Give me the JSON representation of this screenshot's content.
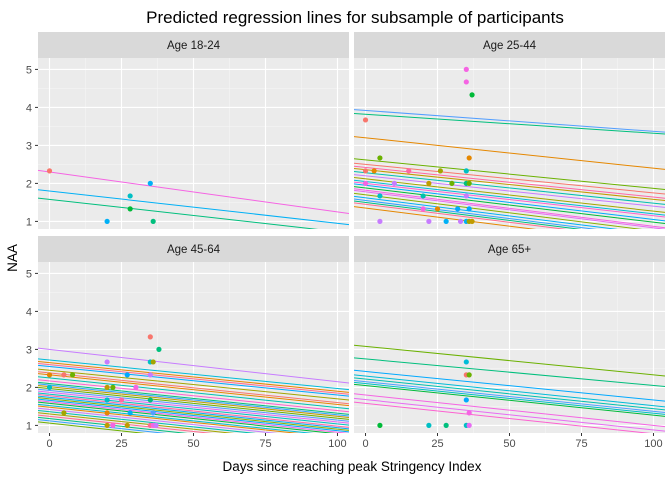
{
  "chart_data": {
    "type": "scatter",
    "title": "Predicted regression lines for subsample of participants",
    "xlabel": "Days since reaching peak Stringency Index",
    "ylabel": "NAA",
    "xlim": [
      -4,
      104
    ],
    "ylim": [
      0.8,
      5.3
    ],
    "x_ticks": [
      0,
      25,
      50,
      75,
      100
    ],
    "x_tick_labels": [
      "0",
      "25",
      "50",
      "75",
      "100"
    ],
    "y_ticks": [
      1,
      2,
      3,
      4,
      5
    ],
    "y_tick_labels": [
      "1",
      "2",
      "3",
      "4",
      "5"
    ],
    "grid": true,
    "legend": "none",
    "facets": [
      {
        "label": "Age 18-24",
        "lines": [
          {
            "intercept": 2.3,
            "slope": -0.0105,
            "color": "#f564e3"
          },
          {
            "intercept": 1.8,
            "slope": -0.0085,
            "color": "#00b0f6"
          },
          {
            "intercept": 1.58,
            "slope": -0.0085,
            "color": "#00bf7d"
          }
        ],
        "points": [
          {
            "x": 0,
            "y": 2.33,
            "color": "#f8766d"
          },
          {
            "x": 20,
            "y": 1.0,
            "color": "#00b0f6"
          },
          {
            "x": 28,
            "y": 1.67,
            "color": "#00bfc4"
          },
          {
            "x": 28,
            "y": 1.33,
            "color": "#00ba38"
          },
          {
            "x": 35,
            "y": 2.0,
            "color": "#00b0f6"
          },
          {
            "x": 36,
            "y": 1.0,
            "color": "#00bf7d"
          }
        ]
      },
      {
        "label": "Age 25-44",
        "lines": [
          {
            "intercept": 3.92,
            "slope": -0.0055,
            "color": "#529eff"
          },
          {
            "intercept": 3.82,
            "slope": -0.005,
            "color": "#00bf7d"
          },
          {
            "intercept": 3.2,
            "slope": -0.008,
            "color": "#e58700"
          },
          {
            "intercept": 2.62,
            "slope": -0.0075,
            "color": "#6bb100"
          },
          {
            "intercept": 2.5,
            "slope": -0.0075,
            "color": "#f8766d"
          },
          {
            "intercept": 2.42,
            "slope": -0.0078,
            "color": "#ff67a4"
          },
          {
            "intercept": 2.36,
            "slope": -0.0078,
            "color": "#c09b00"
          },
          {
            "intercept": 2.28,
            "slope": -0.008,
            "color": "#00c0af"
          },
          {
            "intercept": 2.2,
            "slope": -0.008,
            "color": "#c77cff"
          },
          {
            "intercept": 2.12,
            "slope": -0.0085,
            "color": "#a3a500"
          },
          {
            "intercept": 2.05,
            "slope": -0.0085,
            "color": "#00bcd8"
          },
          {
            "intercept": 2.0,
            "slope": -0.0085,
            "color": "#fd61d1"
          },
          {
            "intercept": 1.95,
            "slope": -0.009,
            "color": "#00a9ff"
          },
          {
            "intercept": 1.88,
            "slope": -0.009,
            "color": "#00ba38"
          },
          {
            "intercept": 1.82,
            "slope": -0.0095,
            "color": "#f564e3"
          },
          {
            "intercept": 1.78,
            "slope": -0.0095,
            "color": "#e76bf3"
          },
          {
            "intercept": 1.7,
            "slope": -0.0095,
            "color": "#8ab000"
          },
          {
            "intercept": 1.62,
            "slope": -0.0095,
            "color": "#00b0f6"
          },
          {
            "intercept": 1.55,
            "slope": -0.0095,
            "color": "#35a2ff"
          },
          {
            "intercept": 1.5,
            "slope": -0.0095,
            "color": "#00bf7d"
          },
          {
            "intercept": 1.45,
            "slope": -0.0095,
            "color": "#ff6c91"
          },
          {
            "intercept": 1.35,
            "slope": -0.0095,
            "color": "#e58700"
          }
        ],
        "points": [
          {
            "x": 0,
            "y": 3.67,
            "color": "#f8766d"
          },
          {
            "x": 0,
            "y": 2.33,
            "color": "#f8766d"
          },
          {
            "x": 0,
            "y": 2.0,
            "color": "#f564e3"
          },
          {
            "x": 3,
            "y": 2.33,
            "color": "#e58700"
          },
          {
            "x": 5,
            "y": 2.67,
            "color": "#6bb100"
          },
          {
            "x": 5,
            "y": 1.67,
            "color": "#00bfc4"
          },
          {
            "x": 5,
            "y": 1.0,
            "color": "#c77cff"
          },
          {
            "x": 10,
            "y": 2.0,
            "color": "#c77cff"
          },
          {
            "x": 15,
            "y": 2.33,
            "color": "#ff67a4"
          },
          {
            "x": 20,
            "y": 1.67,
            "color": "#00c0af"
          },
          {
            "x": 20,
            "y": 1.33,
            "color": "#f564e3"
          },
          {
            "x": 22,
            "y": 1.0,
            "color": "#c77cff"
          },
          {
            "x": 22,
            "y": 2.0,
            "color": "#c09b00"
          },
          {
            "x": 25,
            "y": 1.33,
            "color": "#e58700"
          },
          {
            "x": 26,
            "y": 2.33,
            "color": "#a3a500"
          },
          {
            "x": 28,
            "y": 1.0,
            "color": "#00b0f6"
          },
          {
            "x": 30,
            "y": 2.0,
            "color": "#6bb100"
          },
          {
            "x": 32,
            "y": 1.33,
            "color": "#00a9ff"
          },
          {
            "x": 33,
            "y": 1.0,
            "color": "#c77cff"
          },
          {
            "x": 35,
            "y": 5.0,
            "color": "#f564e3"
          },
          {
            "x": 35,
            "y": 4.67,
            "color": "#f564e3"
          },
          {
            "x": 35,
            "y": 2.33,
            "color": "#00bfc4"
          },
          {
            "x": 35,
            "y": 2.0,
            "color": "#00bf7d"
          },
          {
            "x": 35,
            "y": 1.67,
            "color": "#c77cff"
          },
          {
            "x": 35,
            "y": 1.0,
            "color": "#00b0f6"
          },
          {
            "x": 36,
            "y": 2.67,
            "color": "#e58700"
          },
          {
            "x": 36,
            "y": 2.0,
            "color": "#6bb100"
          },
          {
            "x": 36,
            "y": 1.33,
            "color": "#00a9ff"
          },
          {
            "x": 36,
            "y": 1.0,
            "color": "#a3a500"
          },
          {
            "x": 37,
            "y": 4.33,
            "color": "#00ba38"
          },
          {
            "x": 37,
            "y": 1.0,
            "color": "#c09b00"
          }
        ]
      },
      {
        "label": "Age 45-64",
        "lines": [
          {
            "intercept": 3.0,
            "slope": -0.0085,
            "color": "#c77cff"
          },
          {
            "intercept": 2.72,
            "slope": -0.0075,
            "color": "#00bcd8"
          },
          {
            "intercept": 2.65,
            "slope": -0.0075,
            "color": "#e58700"
          },
          {
            "intercept": 2.6,
            "slope": -0.0075,
            "color": "#ff6c91"
          },
          {
            "intercept": 2.55,
            "slope": -0.0075,
            "color": "#00a9ff"
          },
          {
            "intercept": 2.45,
            "slope": -0.0075,
            "color": "#a3a500"
          },
          {
            "intercept": 2.38,
            "slope": -0.0078,
            "color": "#f8766d"
          },
          {
            "intercept": 2.33,
            "slope": -0.0078,
            "color": "#e58700"
          },
          {
            "intercept": 2.25,
            "slope": -0.0078,
            "color": "#00c0af"
          },
          {
            "intercept": 2.17,
            "slope": -0.0078,
            "color": "#fd61d1"
          },
          {
            "intercept": 2.1,
            "slope": -0.0078,
            "color": "#00bf7d"
          },
          {
            "intercept": 2.06,
            "slope": -0.0078,
            "color": "#35a2ff"
          },
          {
            "intercept": 2.02,
            "slope": -0.0078,
            "color": "#c09b00"
          },
          {
            "intercept": 1.97,
            "slope": -0.0078,
            "color": "#6bb100"
          },
          {
            "intercept": 1.92,
            "slope": -0.0078,
            "color": "#529eff"
          },
          {
            "intercept": 1.87,
            "slope": -0.0078,
            "color": "#e76bf3"
          },
          {
            "intercept": 1.82,
            "slope": -0.0078,
            "color": "#00bfc4"
          },
          {
            "intercept": 1.78,
            "slope": -0.008,
            "color": "#ff67a4"
          },
          {
            "intercept": 1.74,
            "slope": -0.008,
            "color": "#00b0f6"
          },
          {
            "intercept": 1.7,
            "slope": -0.008,
            "color": "#8ab000"
          },
          {
            "intercept": 1.66,
            "slope": -0.008,
            "color": "#00a9ff"
          },
          {
            "intercept": 1.62,
            "slope": -0.008,
            "color": "#f564e3"
          },
          {
            "intercept": 1.58,
            "slope": -0.008,
            "color": "#00ba38"
          },
          {
            "intercept": 1.52,
            "slope": -0.008,
            "color": "#00bcd8"
          },
          {
            "intercept": 1.48,
            "slope": -0.008,
            "color": "#e58700"
          },
          {
            "intercept": 1.42,
            "slope": -0.008,
            "color": "#c77cff"
          },
          {
            "intercept": 1.36,
            "slope": -0.008,
            "color": "#00c0af"
          },
          {
            "intercept": 1.3,
            "slope": -0.008,
            "color": "#a3a500"
          },
          {
            "intercept": 1.24,
            "slope": -0.008,
            "color": "#ff6c91"
          },
          {
            "intercept": 1.18,
            "slope": -0.0082,
            "color": "#00bf7d"
          },
          {
            "intercept": 1.12,
            "slope": -0.0082,
            "color": "#35a2ff"
          },
          {
            "intercept": 1.06,
            "slope": -0.0082,
            "color": "#6bb100"
          }
        ],
        "points": [
          {
            "x": 0,
            "y": 2.33,
            "color": "#e58700"
          },
          {
            "x": 0,
            "y": 2.0,
            "color": "#00bfc4"
          },
          {
            "x": 5,
            "y": 2.33,
            "color": "#f8766d"
          },
          {
            "x": 5,
            "y": 1.33,
            "color": "#a3a500"
          },
          {
            "x": 8,
            "y": 2.33,
            "color": "#6bb100"
          },
          {
            "x": 20,
            "y": 2.67,
            "color": "#c77cff"
          },
          {
            "x": 20,
            "y": 2.0,
            "color": "#c09b00"
          },
          {
            "x": 20,
            "y": 1.67,
            "color": "#00bfc4"
          },
          {
            "x": 20,
            "y": 1.33,
            "color": "#e58700"
          },
          {
            "x": 20,
            "y": 1.0,
            "color": "#c09b00"
          },
          {
            "x": 22,
            "y": 1.0,
            "color": "#f564e3"
          },
          {
            "x": 22,
            "y": 2.0,
            "color": "#6bb100"
          },
          {
            "x": 25,
            "y": 1.67,
            "color": "#ff67a4"
          },
          {
            "x": 27,
            "y": 1.0,
            "color": "#c09b00"
          },
          {
            "x": 27,
            "y": 2.33,
            "color": "#00a9ff"
          },
          {
            "x": 28,
            "y": 1.33,
            "color": "#00b0f6"
          },
          {
            "x": 30,
            "y": 2.0,
            "color": "#f564e3"
          },
          {
            "x": 35,
            "y": 3.33,
            "color": "#f8766d"
          },
          {
            "x": 35,
            "y": 2.67,
            "color": "#00bfc4"
          },
          {
            "x": 35,
            "y": 2.33,
            "color": "#c77cff"
          },
          {
            "x": 35,
            "y": 1.67,
            "color": "#00bf7d"
          },
          {
            "x": 35,
            "y": 1.0,
            "color": "#ff6c91"
          },
          {
            "x": 36,
            "y": 2.67,
            "color": "#a3a500"
          },
          {
            "x": 36,
            "y": 1.33,
            "color": "#529eff"
          },
          {
            "x": 36,
            "y": 1.0,
            "color": "#f564e3"
          },
          {
            "x": 37,
            "y": 1.0,
            "color": "#c77cff"
          },
          {
            "x": 38,
            "y": 3.0,
            "color": "#00bf7d"
          }
        ]
      },
      {
        "label": "Age 65+",
        "lines": [
          {
            "intercept": 3.08,
            "slope": -0.0075,
            "color": "#6bb100"
          },
          {
            "intercept": 2.75,
            "slope": -0.007,
            "color": "#00bf7d"
          },
          {
            "intercept": 2.42,
            "slope": -0.0075,
            "color": "#00a9ff"
          },
          {
            "intercept": 2.3,
            "slope": -0.0078,
            "color": "#00bcd8"
          },
          {
            "intercept": 2.22,
            "slope": -0.0078,
            "color": "#00c0af"
          },
          {
            "intercept": 2.15,
            "slope": -0.0078,
            "color": "#529eff"
          },
          {
            "intercept": 2.1,
            "slope": -0.0078,
            "color": "#00bfc4"
          },
          {
            "intercept": 2.05,
            "slope": -0.0078,
            "color": "#00ba38"
          },
          {
            "intercept": 1.8,
            "slope": -0.008,
            "color": "#f564e3"
          },
          {
            "intercept": 1.68,
            "slope": -0.008,
            "color": "#e76bf3"
          },
          {
            "intercept": 1.58,
            "slope": -0.008,
            "color": "#fd61d1"
          }
        ],
        "points": [
          {
            "x": 5,
            "y": 1.0,
            "color": "#00ba38"
          },
          {
            "x": 22,
            "y": 1.0,
            "color": "#00bfc4"
          },
          {
            "x": 28,
            "y": 1.0,
            "color": "#00bf7d"
          },
          {
            "x": 35,
            "y": 2.67,
            "color": "#00bcd8"
          },
          {
            "x": 35,
            "y": 2.33,
            "color": "#f8766d"
          },
          {
            "x": 35,
            "y": 1.67,
            "color": "#00a9ff"
          },
          {
            "x": 35,
            "y": 1.0,
            "color": "#00bfc4"
          },
          {
            "x": 36,
            "y": 2.33,
            "color": "#6bb100"
          },
          {
            "x": 36,
            "y": 1.33,
            "color": "#f564e3"
          },
          {
            "x": 36,
            "y": 1.0,
            "color": "#e76bf3"
          }
        ]
      }
    ]
  },
  "colors": {
    "panel_background": "#ebebeb",
    "strip_background": "#d9d9d9",
    "grid_major": "#ffffff",
    "grid_minor": "#f5f5f5"
  }
}
